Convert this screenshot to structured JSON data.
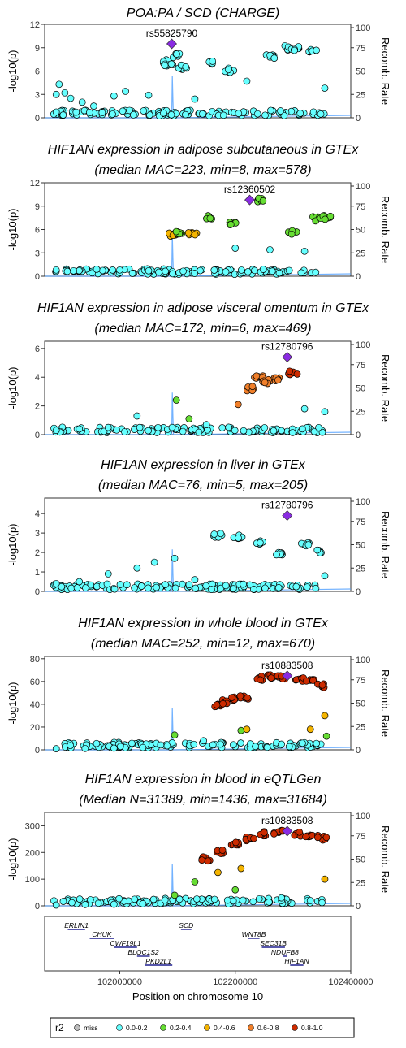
{
  "chart_data": [
    {
      "type": "scatter",
      "title": "POA:PA / SCD (CHARGE)",
      "subtitle": "",
      "ylabel": "-log10(p)",
      "y2label": "Recomb. Rate",
      "ylim": [
        0,
        12
      ],
      "yticks": [
        0,
        3,
        6,
        9,
        12
      ],
      "y2ticks": [
        0,
        25,
        50,
        75,
        100
      ],
      "lead": {
        "label": "rs55825790",
        "x": 102090000,
        "y": 9.5
      },
      "recomb": [
        {
          "x": 102090000,
          "y": 0
        },
        {
          "x": 102091000,
          "y": 45
        },
        {
          "x": 102092000,
          "y": 20
        },
        {
          "x": 102093000,
          "y": 0
        }
      ],
      "points": [
        {
          "x": 101890000,
          "y": 3.0,
          "r2": "0.0-0.2"
        },
        {
          "x": 101895000,
          "y": 4.3,
          "r2": "0.0-0.2"
        },
        {
          "x": 101905000,
          "y": 3.2,
          "r2": "0.0-0.2"
        },
        {
          "x": 101915000,
          "y": 2.5,
          "r2": "0.0-0.2"
        },
        {
          "x": 101935000,
          "y": 2.0,
          "r2": "0.0-0.2"
        },
        {
          "x": 101955000,
          "y": 1.5,
          "r2": "0.0-0.2"
        },
        {
          "x": 101990000,
          "y": 2.8,
          "r2": "0.0-0.2"
        },
        {
          "x": 102010000,
          "y": 3.4,
          "r2": "0.0-0.2"
        },
        {
          "x": 102050000,
          "y": 2.9,
          "r2": "0.0-0.2"
        },
        {
          "x": 102080000,
          "y": 7.2,
          "r2": "0.0-0.2"
        },
        {
          "x": 102085000,
          "y": 6.8,
          "r2": "0.0-0.2"
        },
        {
          "x": 102100000,
          "y": 8.0,
          "r2": "0.0-0.2"
        },
        {
          "x": 102110000,
          "y": 6.5,
          "r2": "0.0-0.2"
        },
        {
          "x": 102130000,
          "y": 2.4,
          "r2": "0.0-0.2"
        },
        {
          "x": 102160000,
          "y": 7.2,
          "r2": "0.0-0.2"
        },
        {
          "x": 102190000,
          "y": 6.1,
          "r2": "0.0-0.2"
        },
        {
          "x": 102220000,
          "y": 4.7,
          "r2": "0.0-0.2"
        },
        {
          "x": 102260000,
          "y": 7.8,
          "r2": "0.0-0.2"
        },
        {
          "x": 102290000,
          "y": 9.0,
          "r2": "0.0-0.2"
        },
        {
          "x": 102310000,
          "y": 8.9,
          "r2": "0.0-0.2"
        },
        {
          "x": 102335000,
          "y": 8.6,
          "r2": "0.0-0.2"
        },
        {
          "x": 102355000,
          "y": 3.8,
          "r2": "0.0-0.2"
        }
      ]
    },
    {
      "type": "scatter",
      "title": "HIF1AN expression in adipose subcutaneous in GTEx",
      "subtitle": "(median MAC=223, min=8, max=578)",
      "ylabel": "-log10(p)",
      "y2label": "Recomb. Rate",
      "ylim": [
        0,
        12
      ],
      "yticks": [
        0,
        3,
        6,
        9,
        12
      ],
      "y2ticks": [
        0,
        25,
        50,
        75,
        100
      ],
      "lead": {
        "label": "rs12360502",
        "x": 102225000,
        "y": 9.8
      },
      "recomb": [
        {
          "x": 102090000,
          "y": 0
        },
        {
          "x": 102091000,
          "y": 45
        },
        {
          "x": 102092000,
          "y": 20
        },
        {
          "x": 102093000,
          "y": 0
        }
      ],
      "points": [
        {
          "x": 101890000,
          "y": 0.8,
          "r2": "0.0-0.2"
        },
        {
          "x": 101920000,
          "y": 0.7,
          "r2": "0.0-0.2"
        },
        {
          "x": 101960000,
          "y": 0.9,
          "r2": "0.0-0.2"
        },
        {
          "x": 102000000,
          "y": 0.8,
          "r2": "0.0-0.2"
        },
        {
          "x": 102050000,
          "y": 0.7,
          "r2": "0.0-0.2"
        },
        {
          "x": 102092000,
          "y": 5.4,
          "r2": "0.4-0.6"
        },
        {
          "x": 102100000,
          "y": 5.7,
          "r2": "0.2-0.4"
        },
        {
          "x": 102125000,
          "y": 5.6,
          "r2": "0.4-0.6"
        },
        {
          "x": 102155000,
          "y": 7.5,
          "r2": "0.2-0.4"
        },
        {
          "x": 102195000,
          "y": 6.8,
          "r2": "0.2-0.4"
        },
        {
          "x": 102245000,
          "y": 9.8,
          "r2": "0.2-0.4"
        },
        {
          "x": 102300000,
          "y": 5.6,
          "r2": "0.2-0.4"
        },
        {
          "x": 102340000,
          "y": 7.4,
          "r2": "0.2-0.4"
        },
        {
          "x": 102360000,
          "y": 7.5,
          "r2": "0.2-0.4"
        },
        {
          "x": 102200000,
          "y": 3.6,
          "r2": "0.0-0.2"
        },
        {
          "x": 102260000,
          "y": 3.4,
          "r2": "0.0-0.2"
        },
        {
          "x": 102320000,
          "y": 3.2,
          "r2": "0.0-0.2"
        }
      ]
    },
    {
      "type": "scatter",
      "title": "HIF1AN expression in adipose visceral omentum in GTEx",
      "subtitle": "(median MAC=172, min=6, max=469)",
      "ylabel": "-log10(p)",
      "y2label": "Recomb. Rate",
      "ylim": [
        0,
        6.5
      ],
      "yticks": [
        0,
        2,
        4,
        6
      ],
      "y2ticks": [
        0,
        25,
        50,
        75,
        100
      ],
      "lead": {
        "label": "rs12780796",
        "x": 102290000,
        "y": 5.4
      },
      "recomb": [
        {
          "x": 102090000,
          "y": 0
        },
        {
          "x": 102091000,
          "y": 45
        },
        {
          "x": 102092000,
          "y": 20
        },
        {
          "x": 102093000,
          "y": 0
        }
      ],
      "points": [
        {
          "x": 101890000,
          "y": 0.3,
          "r2": "0.0-0.2"
        },
        {
          "x": 101930000,
          "y": 0.4,
          "r2": "0.0-0.2"
        },
        {
          "x": 101980000,
          "y": 0.5,
          "r2": "0.0-0.2"
        },
        {
          "x": 102030000,
          "y": 1.3,
          "r2": "0.0-0.2"
        },
        {
          "x": 102098000,
          "y": 2.4,
          "r2": "0.2-0.4"
        },
        {
          "x": 102120000,
          "y": 1.1,
          "r2": "0.2-0.4"
        },
        {
          "x": 102205000,
          "y": 2.1,
          "r2": "0.6-0.8"
        },
        {
          "x": 102225000,
          "y": 3.2,
          "r2": "0.6-0.8"
        },
        {
          "x": 102240000,
          "y": 4.0,
          "r2": "0.6-0.8"
        },
        {
          "x": 102255000,
          "y": 3.7,
          "r2": "0.6-0.8"
        },
        {
          "x": 102275000,
          "y": 3.9,
          "r2": "0.6-0.8"
        },
        {
          "x": 102300000,
          "y": 4.3,
          "r2": "0.8-1.0"
        },
        {
          "x": 102320000,
          "y": 1.8,
          "r2": "0.0-0.2"
        },
        {
          "x": 102355000,
          "y": 1.6,
          "r2": "0.0-0.2"
        },
        {
          "x": 102150000,
          "y": 0.7,
          "r2": "0.0-0.2"
        }
      ]
    },
    {
      "type": "scatter",
      "title": "HIF1AN expression in liver in GTEx",
      "subtitle": "(median MAC=76, min=5, max=205)",
      "ylabel": "-log10(p)",
      "y2label": "Recomb. Rate",
      "ylim": [
        0,
        4.8
      ],
      "yticks": [
        0,
        1,
        2,
        3,
        4
      ],
      "y2ticks": [
        0,
        25,
        50,
        75,
        100
      ],
      "lead": {
        "label": "rs12780796",
        "x": 102290000,
        "y": 3.9
      },
      "recomb": [
        {
          "x": 102090000,
          "y": 0
        },
        {
          "x": 102091000,
          "y": 45
        },
        {
          "x": 102092000,
          "y": 20
        },
        {
          "x": 102093000,
          "y": 0
        }
      ],
      "points": [
        {
          "x": 101890000,
          "y": 0.4,
          "r2": "0.0-0.2"
        },
        {
          "x": 101930000,
          "y": 0.5,
          "r2": "0.0-0.2"
        },
        {
          "x": 101980000,
          "y": 0.9,
          "r2": "0.0-0.2"
        },
        {
          "x": 102030000,
          "y": 1.2,
          "r2": "0.0-0.2"
        },
        {
          "x": 102060000,
          "y": 1.5,
          "r2": "0.0-0.2"
        },
        {
          "x": 102095000,
          "y": 1.7,
          "r2": "0.0-0.2"
        },
        {
          "x": 102130000,
          "y": 0.6,
          "r2": "0.0-0.2"
        },
        {
          "x": 102170000,
          "y": 2.9,
          "r2": "0.0-0.2"
        },
        {
          "x": 102205000,
          "y": 2.8,
          "r2": "0.0-0.2"
        },
        {
          "x": 102240000,
          "y": 2.5,
          "r2": "0.0-0.2"
        },
        {
          "x": 102275000,
          "y": 2.0,
          "r2": "0.0-0.2"
        },
        {
          "x": 102320000,
          "y": 2.4,
          "r2": "0.0-0.2"
        },
        {
          "x": 102345000,
          "y": 2.1,
          "r2": "0.0-0.2"
        },
        {
          "x": 102355000,
          "y": 0.8,
          "r2": "0.0-0.2"
        }
      ]
    },
    {
      "type": "scatter",
      "title": "HIF1AN expression in whole blood in GTEx",
      "subtitle": "(median MAC=252, min=12, max=670)",
      "ylabel": "-log10(p)",
      "y2label": "Recomb. Rate",
      "ylim": [
        0,
        82
      ],
      "yticks": [
        0,
        20,
        40,
        60,
        80
      ],
      "y2ticks": [
        0,
        25,
        50,
        75,
        100
      ],
      "lead": {
        "label": "rs10883508",
        "x": 102290000,
        "y": 65
      },
      "recomb": [
        {
          "x": 102090000,
          "y": 0
        },
        {
          "x": 102091000,
          "y": 45
        },
        {
          "x": 102092000,
          "y": 20
        },
        {
          "x": 102093000,
          "y": 0
        }
      ],
      "points": [
        {
          "x": 101890000,
          "y": 1.0,
          "r2": "0.0-0.2"
        },
        {
          "x": 101940000,
          "y": 1.2,
          "r2": "0.0-0.2"
        },
        {
          "x": 101990000,
          "y": 1.5,
          "r2": "0.0-0.2"
        },
        {
          "x": 102040000,
          "y": 2.0,
          "r2": "0.0-0.2"
        },
        {
          "x": 102095000,
          "y": 13,
          "r2": "0.2-0.4"
        },
        {
          "x": 102145000,
          "y": 8,
          "r2": "0.0-0.2"
        },
        {
          "x": 102170000,
          "y": 40,
          "r2": "0.8-1.0"
        },
        {
          "x": 102185000,
          "y": 42,
          "r2": "0.8-1.0"
        },
        {
          "x": 102200000,
          "y": 45,
          "r2": "0.8-1.0"
        },
        {
          "x": 102215000,
          "y": 46,
          "r2": "0.8-1.0"
        },
        {
          "x": 102240000,
          "y": 63,
          "r2": "0.8-1.0"
        },
        {
          "x": 102260000,
          "y": 64,
          "r2": "0.8-1.0"
        },
        {
          "x": 102280000,
          "y": 63,
          "r2": "0.8-1.0"
        },
        {
          "x": 102310000,
          "y": 62,
          "r2": "0.8-1.0"
        },
        {
          "x": 102330000,
          "y": 61,
          "r2": "0.8-1.0"
        },
        {
          "x": 102350000,
          "y": 56,
          "r2": "0.8-1.0"
        },
        {
          "x": 102210000,
          "y": 17,
          "r2": "0.2-0.4"
        },
        {
          "x": 102220000,
          "y": 18,
          "r2": "0.4-0.6"
        },
        {
          "x": 102330000,
          "y": 18,
          "r2": "0.4-0.6"
        },
        {
          "x": 102355000,
          "y": 30,
          "r2": "0.4-0.6"
        },
        {
          "x": 102358000,
          "y": 12,
          "r2": "0.2-0.4"
        },
        {
          "x": 102280000,
          "y": 5,
          "r2": "0.0-0.2"
        },
        {
          "x": 102235000,
          "y": 3,
          "r2": "0.0-0.2"
        }
      ]
    },
    {
      "type": "scatter",
      "title": "HIF1AN expression in blood in eQTLGen",
      "subtitle": "(Median N=31389, min=1436, max=31684)",
      "ylabel": "-log10(p)",
      "y2label": "Recomb. Rate",
      "ylim": [
        0,
        350
      ],
      "yticks": [
        0,
        100,
        200,
        300
      ],
      "y2ticks": [
        0,
        25,
        50,
        75,
        100
      ],
      "lead": {
        "label": "rs10883508",
        "x": 102290000,
        "y": 280
      },
      "recomb": [
        {
          "x": 102090000,
          "y": 0
        },
        {
          "x": 102091000,
          "y": 45
        },
        {
          "x": 102092000,
          "y": 20
        },
        {
          "x": 102093000,
          "y": 0
        }
      ],
      "points": [
        {
          "x": 101890000,
          "y": 3,
          "r2": "0.0-0.2"
        },
        {
          "x": 101940000,
          "y": 5,
          "r2": "0.0-0.2"
        },
        {
          "x": 101990000,
          "y": 6,
          "r2": "0.0-0.2"
        },
        {
          "x": 102040000,
          "y": 8,
          "r2": "0.0-0.2"
        },
        {
          "x": 102095000,
          "y": 40,
          "r2": "0.2-0.4"
        },
        {
          "x": 102130000,
          "y": 90,
          "r2": "0.2-0.4"
        },
        {
          "x": 102150000,
          "y": 175,
          "r2": "0.8-1.0"
        },
        {
          "x": 102175000,
          "y": 200,
          "r2": "0.8-1.0"
        },
        {
          "x": 102200000,
          "y": 230,
          "r2": "0.8-1.0"
        },
        {
          "x": 102225000,
          "y": 250,
          "r2": "0.8-1.0"
        },
        {
          "x": 102250000,
          "y": 270,
          "r2": "0.8-1.0"
        },
        {
          "x": 102275000,
          "y": 275,
          "r2": "0.8-1.0"
        },
        {
          "x": 102305000,
          "y": 270,
          "r2": "0.8-1.0"
        },
        {
          "x": 102330000,
          "y": 265,
          "r2": "0.8-1.0"
        },
        {
          "x": 102350000,
          "y": 255,
          "r2": "0.8-1.0"
        },
        {
          "x": 102170000,
          "y": 125,
          "r2": "0.4-0.6"
        },
        {
          "x": 102210000,
          "y": 140,
          "r2": "0.4-0.6"
        },
        {
          "x": 102355000,
          "y": 100,
          "r2": "0.4-0.6"
        },
        {
          "x": 102200000,
          "y": 60,
          "r2": "0.2-0.4"
        },
        {
          "x": 102280000,
          "y": 30,
          "r2": "0.0-0.2"
        },
        {
          "x": 102330000,
          "y": 20,
          "r2": "0.0-0.2"
        }
      ]
    }
  ],
  "gene_track": {
    "genes": [
      {
        "name": "ERLIN1",
        "start": 101910000,
        "end": 101940000,
        "row": 0
      },
      {
        "name": "SCD",
        "start": 102106000,
        "end": 102124000,
        "row": 0
      },
      {
        "name": "CHUK",
        "start": 101948000,
        "end": 101990000,
        "row": 1
      },
      {
        "name": "WNT8B",
        "start": 102222000,
        "end": 102242000,
        "row": 1
      },
      {
        "name": "CWF19L1",
        "start": 101990000,
        "end": 102030000,
        "row": 2
      },
      {
        "name": "SEC31B",
        "start": 102246000,
        "end": 102286000,
        "row": 2
      },
      {
        "name": "BLOC1S2",
        "start": 102030000,
        "end": 102052000,
        "row": 3
      },
      {
        "name": "NDUFB8",
        "start": 102283000,
        "end": 102289000,
        "row": 3
      },
      {
        "name": "PKD2L1",
        "start": 102043000,
        "end": 102091000,
        "row": 4
      },
      {
        "name": "HIF1AN",
        "start": 102295000,
        "end": 102318000,
        "row": 4
      }
    ],
    "xlabel": "Position on chromosome 10",
    "xticks": [
      102000000,
      102200000,
      102400000
    ],
    "xlim": [
      101870000,
      102400000
    ]
  },
  "legend": {
    "title": "r2",
    "items": [
      {
        "label": "miss",
        "color": "#bdbdbd"
      },
      {
        "label": "0.0-0.2",
        "color": "#66ffff"
      },
      {
        "label": "0.2-0.4",
        "color": "#66dd33"
      },
      {
        "label": "0.4-0.6",
        "color": "#f4b400"
      },
      {
        "label": "0.6-0.8",
        "color": "#f07f2a"
      },
      {
        "label": "0.8-1.0",
        "color": "#cc2b00"
      }
    ]
  },
  "colors": {
    "lead": "#8a2be2",
    "recomb": "#4f9fff",
    "axis": "#333333"
  }
}
